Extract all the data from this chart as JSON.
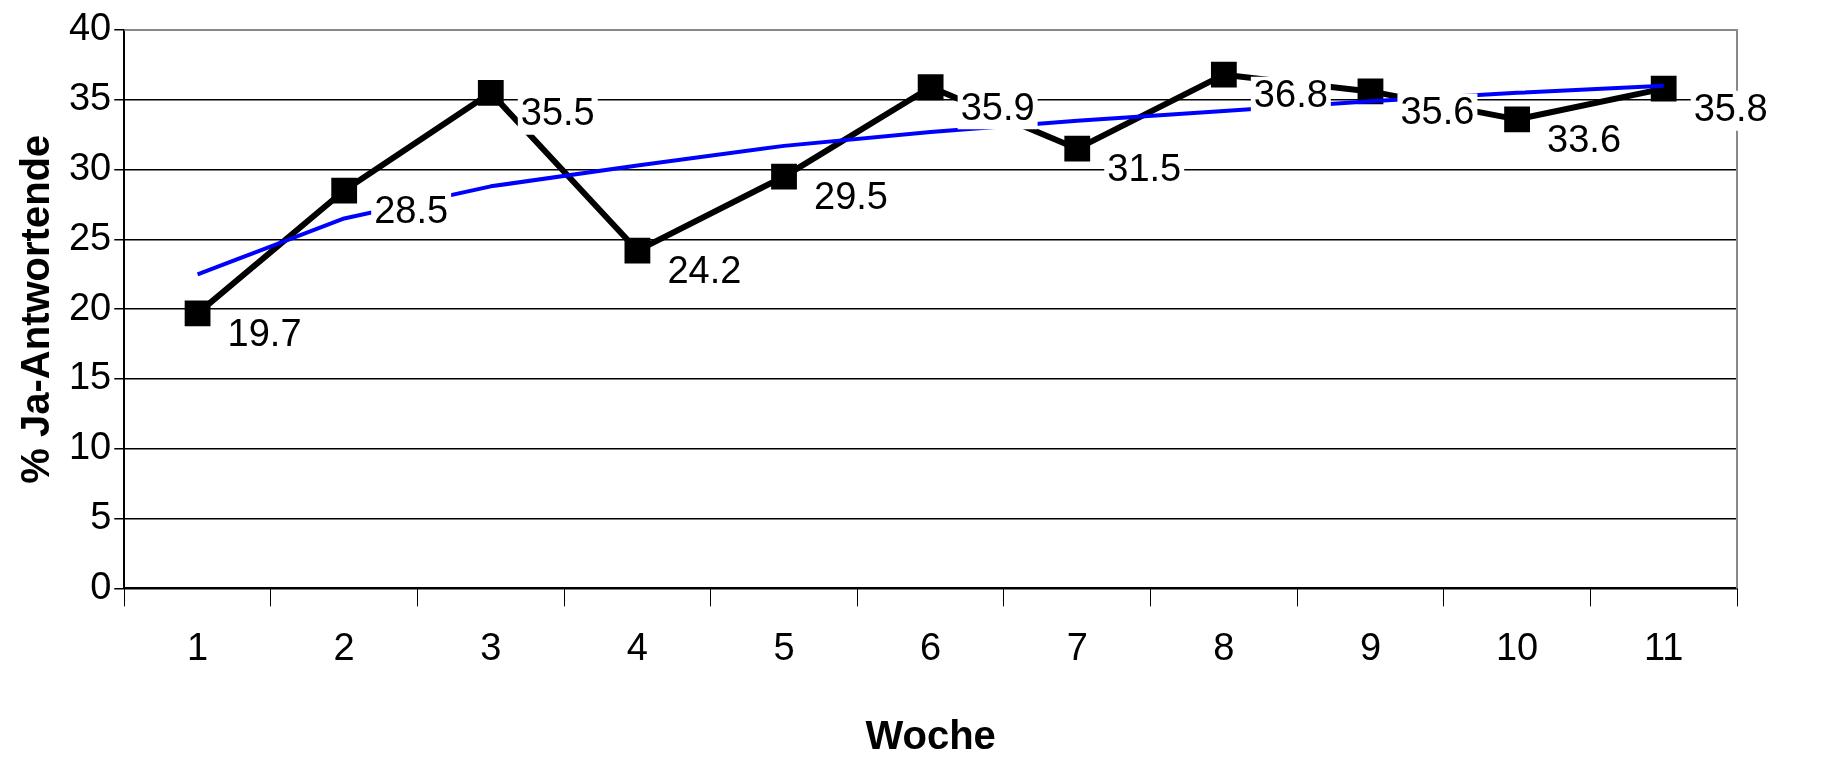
{
  "chart_data": {
    "type": "line",
    "xlabel": "Woche",
    "ylabel": "% Ja-Antwortende",
    "categories": [
      "1",
      "2",
      "3",
      "4",
      "5",
      "6",
      "7",
      "8",
      "9",
      "10",
      "11"
    ],
    "series": [
      {
        "color": "#000000",
        "marker": "square",
        "values": [
          19.7,
          28.5,
          35.5,
          24.2,
          29.5,
          35.9,
          31.5,
          36.8,
          35.6,
          33.6,
          35.8
        ],
        "value_labels": [
          "19.7",
          "28.5",
          "35.5",
          "24.2",
          "29.5",
          "35.9",
          "31.5",
          "36.8",
          "35.6",
          "33.6",
          "35.8"
        ]
      },
      {
        "color": "#0000ff",
        "marker": "none",
        "values": [
          22.5,
          26.5,
          28.8,
          30.3,
          31.7,
          32.7,
          33.5,
          34.2,
          34.9,
          35.5,
          36
        ]
      }
    ],
    "ylim": [
      0,
      40
    ],
    "yticks": [
      0,
      5,
      10,
      15,
      20,
      25,
      30,
      35,
      40
    ],
    "grid": "y",
    "legend": false
  }
}
